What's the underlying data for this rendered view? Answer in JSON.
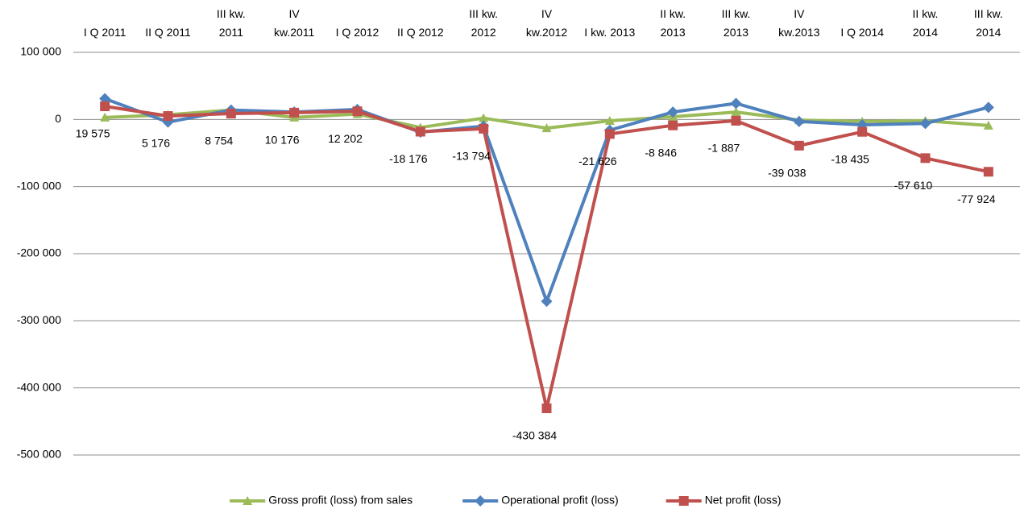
{
  "chart_data": {
    "type": "line",
    "categories": [
      "I Q 2011",
      "II Q 2011",
      "III kw.\n2011",
      "IV\nkw.2011",
      "I Q 2012",
      "II Q 2012",
      "III kw.\n2012",
      "IV\nkw.2012",
      "I kw. 2013",
      "II kw.\n2013",
      "III kw.\n2013",
      "IV\nkw.2013",
      "I Q 2014",
      "II kw.\n2014",
      "III kw.\n2014"
    ],
    "series": [
      {
        "name": "Gross profit (loss) from sales",
        "color": "#9bbb59",
        "marker": "triangle",
        "values": [
          3000,
          7000,
          14000,
          3000,
          8000,
          -12000,
          2000,
          -13000,
          -2000,
          4000,
          11000,
          -1000,
          -3000,
          -2000,
          -9000
        ]
      },
      {
        "name": "Operational profit (loss)",
        "color": "#4f81bd",
        "marker": "diamond",
        "values": [
          31000,
          -4000,
          14000,
          11000,
          15000,
          -19000,
          -10000,
          -271000,
          -16000,
          11000,
          24000,
          -3000,
          -8000,
          -6000,
          18000
        ]
      },
      {
        "name": "Net profit (loss)",
        "color": "#c0504d",
        "marker": "square",
        "values": [
          19575,
          5176,
          8754,
          10176,
          12202,
          -18176,
          -13794,
          -430384,
          -21626,
          -8846,
          -1887,
          -39038,
          -18435,
          -57610,
          -77924
        ],
        "value_labels": [
          "19 575",
          "5 176",
          "8 754",
          "10 176",
          "12 202",
          "-18 176",
          "-13 794",
          "-430 384",
          "-21 626",
          "-8 846",
          "-1 887",
          "-39 038",
          "-18 435",
          "-57 610",
          "-77 924"
        ]
      }
    ],
    "ylim": [
      -500000,
      100000
    ],
    "yticks": [
      {
        "value": -500000,
        "label": "-500 000"
      },
      {
        "value": -400000,
        "label": "-400 000"
      },
      {
        "value": -300000,
        "label": "-300 000"
      },
      {
        "value": -200000,
        "label": "-200 000"
      },
      {
        "value": -100000,
        "label": "-100 000"
      },
      0,
      {
        "value": 100000,
        "label": "100 000"
      }
    ],
    "grid": true,
    "legend": "bottom"
  }
}
